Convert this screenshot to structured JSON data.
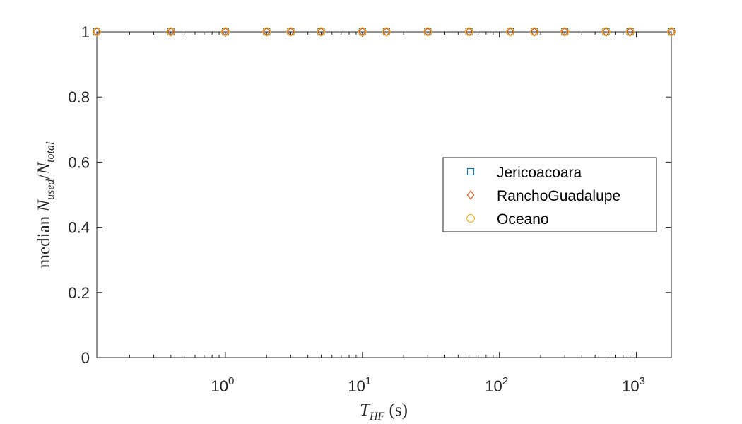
{
  "chart_data": {
    "type": "scatter",
    "xscale": "log",
    "xlim": [
      0.1152,
      1800
    ],
    "ylim": [
      0,
      1
    ],
    "xlabel": {
      "symbol": "T",
      "subscript": "HF",
      "unit": " (s)"
    },
    "ylabel": {
      "prefix": "median ",
      "num_symbol": "N",
      "num_sub": "used",
      "sep": "/",
      "den_symbol": "N",
      "den_sub": "total"
    },
    "x_ticks": [
      {
        "base": "10",
        "exp": "0",
        "value": 1
      },
      {
        "base": "10",
        "exp": "1",
        "value": 10
      },
      {
        "base": "10",
        "exp": "2",
        "value": 100
      },
      {
        "base": "10",
        "exp": "3",
        "value": 1000
      }
    ],
    "y_ticks": [
      {
        "label": "0",
        "value": 0
      },
      {
        "label": "0.2",
        "value": 0.2
      },
      {
        "label": "0.4",
        "value": 0.4
      },
      {
        "label": "0.6",
        "value": 0.6
      },
      {
        "label": "0.8",
        "value": 0.8
      },
      {
        "label": "1",
        "value": 1
      }
    ],
    "x": [
      0.1152,
      0.4,
      1,
      2,
      3,
      5,
      10,
      15,
      30,
      60,
      120,
      180,
      300,
      600,
      900,
      1800
    ],
    "series": [
      {
        "name": "Jericoacoara",
        "marker": "square",
        "color": "#0072BD",
        "values": [
          1,
          1,
          1,
          1,
          1,
          1,
          1,
          1,
          1,
          1,
          1,
          1,
          1,
          1,
          1,
          1
        ]
      },
      {
        "name": "RanchoGuadalupe",
        "marker": "diamond",
        "color": "#D95319",
        "values": [
          1,
          1,
          1,
          1,
          1,
          1,
          1,
          1,
          1,
          1,
          1,
          1,
          1,
          1,
          1,
          1
        ]
      },
      {
        "name": "Oceano",
        "marker": "circle",
        "color": "#EDB120",
        "values": [
          1,
          1,
          1,
          1,
          1,
          1,
          1,
          1,
          1,
          1,
          1,
          1,
          1,
          1,
          1,
          1
        ]
      }
    ],
    "legend": {
      "placement": "right"
    },
    "grid": false
  }
}
